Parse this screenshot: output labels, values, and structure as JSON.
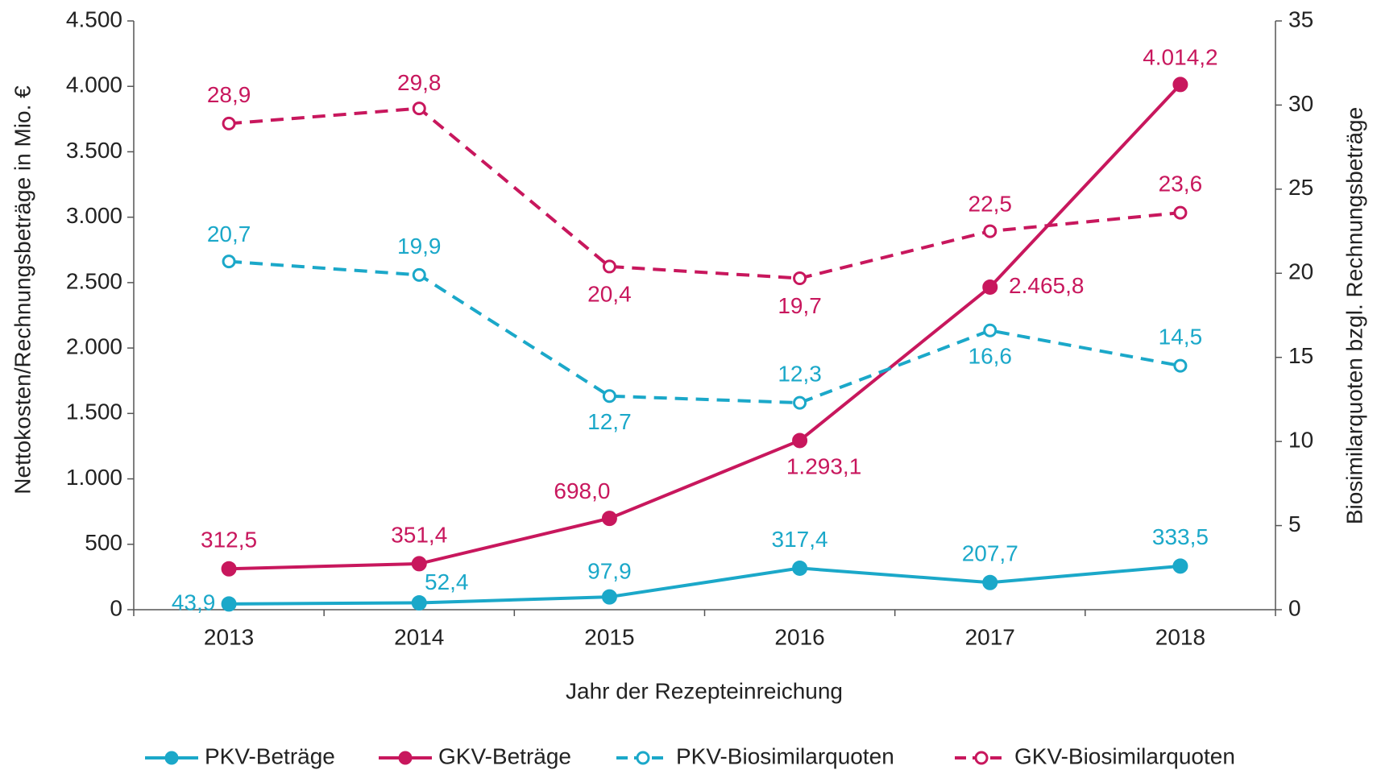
{
  "chart_data": {
    "type": "line",
    "xlabel": "Jahr der Rezepteinreichung",
    "ylabel": "Nettokosten/Rechnungsbeträge in Mio. €",
    "y2label": "Biosimilarquoten bzgl. Rechnungsbeträge",
    "categories": [
      "2013",
      "2014",
      "2015",
      "2016",
      "2017",
      "2018"
    ],
    "ylim": [
      0,
      4500
    ],
    "yticks": [
      0,
      500,
      {
        "value": 1000,
        "label": "1.000"
      },
      {
        "value": 1500,
        "label": "1.500"
      },
      {
        "value": 2000,
        "label": "2.000"
      },
      {
        "value": 2500,
        "label": "2.500"
      },
      {
        "value": 3000,
        "label": "3.000"
      },
      {
        "value": 3500,
        "label": "3.500"
      },
      {
        "value": 4000,
        "label": "4.000"
      },
      {
        "value": 4500,
        "label": "4.500"
      }
    ],
    "y2lim": [
      0,
      35
    ],
    "y2ticks": [
      0,
      5,
      10,
      15,
      20,
      25,
      30,
      35
    ],
    "legend": "bottom",
    "series": [
      {
        "name": "PKV-Beträge",
        "color": "#1ba8c9",
        "linestyle": "solid",
        "values": [
          43.9,
          52.4,
          97.9,
          317.4,
          207.7,
          333.5
        ],
        "value_labels": [
          "43,9",
          "52,4",
          "97,9",
          "317,4",
          "207,7",
          "333,5"
        ]
      },
      {
        "name": "GKV-Beträge",
        "color": "#c8175d",
        "linestyle": "solid",
        "values": [
          312.5,
          351.4,
          698.0,
          1293.1,
          2465.8,
          4014.2
        ],
        "value_labels": [
          "312,5",
          "351,4",
          "698,0",
          "1.293,1",
          "2.465,8",
          "4.014,2"
        ]
      },
      {
        "name": "PKV-Biosimilarquoten",
        "color": "#1ba8c9",
        "linestyle": "dashed",
        "axis": "y2",
        "values": [
          20.7,
          19.9,
          12.7,
          12.3,
          16.6,
          14.5
        ],
        "value_labels": [
          "20,7",
          "19,9",
          "12,7",
          "12,3",
          "16,6",
          "14,5"
        ]
      },
      {
        "name": "GKV-Biosimilarquoten",
        "color": "#c8175d",
        "linestyle": "dashed",
        "axis": "y2",
        "values": [
          28.9,
          29.8,
          20.4,
          19.7,
          22.5,
          23.6
        ],
        "value_labels": [
          "28,9",
          "29,8",
          "20,4",
          "19,7",
          "22,5",
          "23,6"
        ]
      }
    ]
  }
}
